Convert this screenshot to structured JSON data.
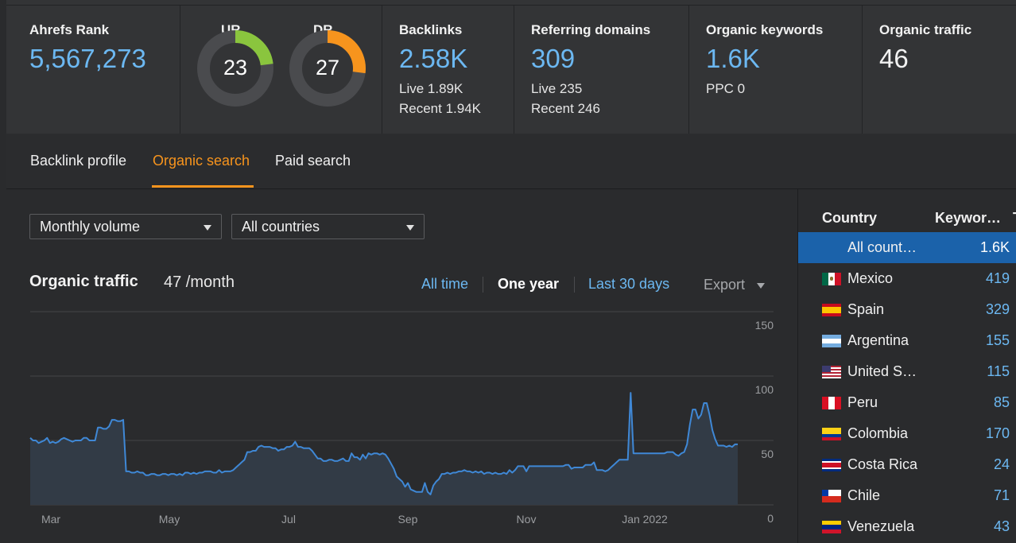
{
  "metrics": {
    "ahrefs_rank": {
      "label": "Ahrefs Rank",
      "value": "5,567,273"
    },
    "ur": {
      "label": "UR",
      "value": "23",
      "score": 23,
      "color": "#8ac53e"
    },
    "dr": {
      "label": "DR",
      "value": "27",
      "score": 27,
      "color": "#f7941d"
    },
    "backlinks": {
      "label": "Backlinks",
      "value": "2.58K",
      "live": "Live 1.89K",
      "recent": "Recent 1.94K"
    },
    "referring_domains": {
      "label": "Referring domains",
      "value": "309",
      "live": "Live 235",
      "recent": "Recent 246"
    },
    "organic_keywords": {
      "label": "Organic keywords",
      "value": "1.6K",
      "ppc": "PPC 0"
    },
    "organic_traffic": {
      "label": "Organic traffic",
      "value": "46"
    }
  },
  "tabs": [
    {
      "label": "Backlink profile",
      "active": false
    },
    {
      "label": "Organic search",
      "active": true
    },
    {
      "label": "Paid search",
      "active": false
    }
  ],
  "filters": {
    "volume": "Monthly volume",
    "country": "All countries"
  },
  "chart_header": {
    "title": "Organic traffic",
    "value": "47 /month",
    "ranges": [
      "All time",
      "One year",
      "Last 30 days"
    ],
    "selected_range": "One year",
    "export": "Export"
  },
  "chart_data": {
    "type": "area",
    "y_ticks": [
      "150",
      "100",
      "50",
      "0"
    ],
    "x_ticks": [
      "Mar",
      "May",
      "Jul",
      "Sep",
      "Nov",
      "Jan 2022"
    ],
    "ylim": [
      0,
      150
    ],
    "grid": true,
    "line_color": "#3f88d6",
    "series": [
      {
        "values": [
          52,
          50,
          50,
          48,
          49,
          50,
          52,
          48,
          49,
          48,
          49,
          51,
          52,
          51,
          50,
          49,
          50,
          50,
          50,
          52,
          52,
          50,
          50,
          50,
          60,
          60,
          59,
          59,
          61,
          66,
          66,
          65,
          65,
          66,
          26,
          26,
          25,
          25,
          26,
          25,
          25,
          23,
          23,
          24,
          24,
          23,
          23,
          24,
          24,
          23,
          24,
          24,
          23,
          24,
          23,
          25,
          25,
          24,
          25,
          24,
          25,
          25,
          26,
          26,
          26,
          25,
          25,
          27,
          25,
          26,
          26,
          26,
          27,
          29,
          31,
          33,
          35,
          41,
          41,
          42,
          42,
          45,
          46,
          45,
          45,
          45,
          44,
          44,
          42,
          43,
          43,
          45,
          45,
          46,
          49,
          45,
          45,
          44,
          44,
          44,
          42,
          39,
          36,
          36,
          34,
          34,
          35,
          35,
          34,
          34,
          35,
          36,
          34,
          34,
          40,
          37,
          37,
          35,
          39,
          36,
          40,
          39,
          40,
          40,
          39,
          40,
          39,
          36,
          32,
          28,
          22,
          20,
          18,
          14,
          17,
          12,
          11,
          10,
          10,
          10,
          17,
          10,
          8,
          15,
          18,
          20,
          24,
          24,
          25,
          24,
          25,
          25,
          26,
          26,
          27,
          26,
          26,
          25,
          26,
          25,
          26,
          24,
          25,
          25,
          24,
          25,
          24,
          24,
          25,
          24,
          27,
          25,
          27,
          30,
          30,
          30,
          26,
          30,
          30,
          30,
          30,
          30,
          30,
          30,
          30,
          30,
          30,
          30,
          30,
          30,
          31,
          31,
          28,
          29,
          29,
          29,
          29,
          31,
          31,
          31,
          33,
          27,
          27,
          27,
          26,
          27,
          29,
          31,
          33,
          35,
          35,
          35,
          35,
          87,
          40,
          40,
          40,
          40,
          40,
          40,
          40,
          40,
          40,
          40,
          40,
          40,
          41,
          41,
          41,
          39,
          38,
          40,
          41,
          47,
          62,
          74,
          74,
          67,
          70,
          79,
          79,
          70,
          58,
          51,
          46,
          46,
          46,
          45,
          46,
          45,
          47,
          47
        ]
      }
    ]
  },
  "country_table": {
    "headers": [
      "Country",
      "Keywor…",
      "T"
    ],
    "rows": [
      {
        "country": "All count…",
        "keywords": "1.6K",
        "flag": "none",
        "selected": true
      },
      {
        "country": "Mexico",
        "keywords": "419",
        "flag": "mexico"
      },
      {
        "country": "Spain",
        "keywords": "329",
        "flag": "spain"
      },
      {
        "country": "Argentina",
        "keywords": "155",
        "flag": "argentina"
      },
      {
        "country": "United S…",
        "keywords": "115",
        "flag": "usa"
      },
      {
        "country": "Peru",
        "keywords": "85",
        "flag": "peru"
      },
      {
        "country": "Colombia",
        "keywords": "170",
        "flag": "colombia"
      },
      {
        "country": "Costa Rica",
        "keywords": "24",
        "flag": "costa-rica"
      },
      {
        "country": "Chile",
        "keywords": "71",
        "flag": "chile"
      },
      {
        "country": "Venezuela",
        "keywords": "43",
        "flag": "venezuela"
      }
    ]
  }
}
